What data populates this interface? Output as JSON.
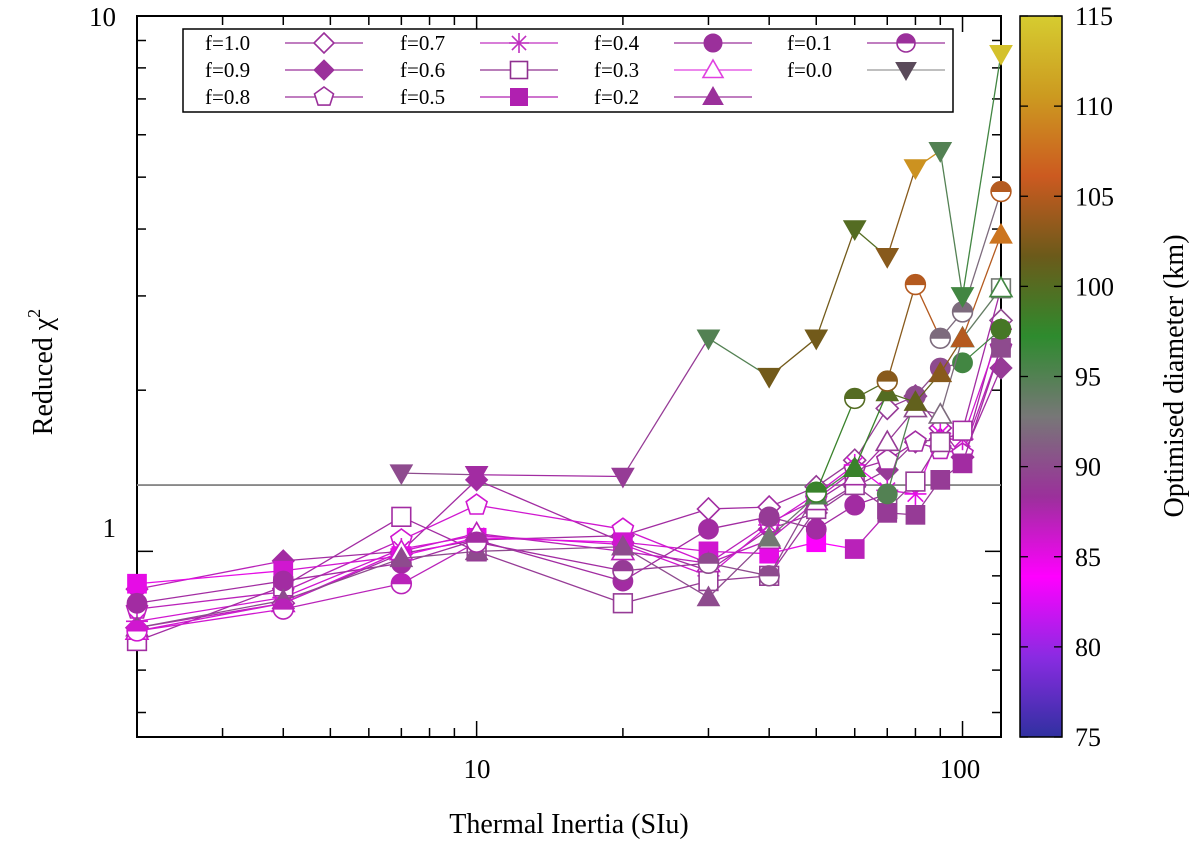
{
  "chart_data": {
    "type": "line",
    "xscale": "log",
    "yscale": "log",
    "xlim": [
      2,
      120
    ],
    "ylim": [
      0.45,
      10
    ],
    "xlabel": "Thermal Inertia (SIu)",
    "ylabel": "Reduced χ",
    "ylabel_superscript": "2",
    "x_tick_labels": [
      "10",
      "100"
    ],
    "y_tick_labels": [
      "1",
      "10"
    ],
    "reference_line": 1.33,
    "colorbar": {
      "label": "Optimised diameter (km)",
      "range": [
        75,
        115
      ],
      "tick_labels": [
        "75",
        "80",
        "85",
        "90",
        "95",
        "100",
        "105",
        "110",
        "115"
      ],
      "colormap": [
        "#3030a0",
        "#8a2be2",
        "#ff00ff",
        "#9b309b",
        "#777777",
        "#2e8b2e",
        "#6b5a1a",
        "#cc5a20",
        "#cc9a20",
        "#d6cc30"
      ]
    },
    "x": [
      2,
      4,
      7,
      10,
      20,
      30,
      40,
      50,
      60,
      70,
      80,
      90,
      100,
      120
    ],
    "series": [
      {
        "name": "f=1.0",
        "marker": "diamond-open",
        "values": [
          0.72,
          0.8,
          0.99,
          1.05,
          1.07,
          1.2,
          1.21,
          1.32,
          1.48,
          1.85,
          1.95,
          1.7,
          1.5,
          2.7
        ],
        "diameters": [
          87,
          88,
          88,
          88,
          88,
          88,
          88,
          89,
          89,
          89,
          89,
          88,
          88,
          90
        ]
      },
      {
        "name": "f=0.9",
        "marker": "diamond-filled",
        "values": [
          0.85,
          0.96,
          1.0,
          1.36,
          1.04,
          0.92,
          1.1,
          1.18,
          1.32,
          1.42,
          1.6,
          1.62,
          1.5,
          2.2
        ],
        "diameters": [
          87,
          88,
          88,
          88,
          88,
          88,
          88,
          89,
          89,
          89,
          89,
          88,
          88,
          89
        ]
      },
      {
        "name": "f=0.8",
        "marker": "pentagon-open",
        "values": [
          0.78,
          0.84,
          1.05,
          1.22,
          1.1,
          0.95,
          1.13,
          1.25,
          1.42,
          1.48,
          1.6,
          1.55,
          1.52,
          2.4
        ],
        "diameters": [
          87,
          87,
          86,
          86,
          86,
          87,
          87,
          87,
          88,
          88,
          88,
          87,
          87,
          88
        ]
      },
      {
        "name": "f=0.7",
        "marker": "asterisk",
        "values": [
          0.74,
          0.82,
          1.01,
          1.07,
          1.03,
          0.9,
          1.12,
          1.28,
          1.45,
          1.3,
          1.28,
          1.66,
          1.62,
          2.6
        ],
        "diameters": [
          86,
          86,
          86,
          86,
          86,
          86,
          86,
          86,
          85,
          86,
          85,
          85,
          86,
          86
        ]
      },
      {
        "name": "f=0.6",
        "marker": "square-open",
        "values": [
          0.68,
          0.86,
          1.16,
          1.0,
          0.8,
          0.88,
          0.9,
          1.2,
          1.33,
          1.2,
          1.35,
          1.6,
          1.68,
          3.1
        ],
        "diameters": [
          88,
          88,
          88,
          89,
          89,
          89,
          89,
          89,
          89,
          90,
          89,
          89,
          88,
          93
        ]
      },
      {
        "name": "f=0.5",
        "marker": "square-filled",
        "values": [
          0.87,
          0.92,
          0.98,
          1.06,
          1.04,
          1.0,
          0.99,
          1.04,
          1.01,
          1.18,
          1.17,
          1.36,
          1.46,
          2.4
        ],
        "diameters": [
          85,
          86,
          85,
          85,
          86,
          86,
          85,
          84,
          87,
          89,
          89,
          89,
          88,
          90
        ]
      },
      {
        "name": "f=0.4",
        "marker": "circle-filled",
        "values": [
          0.8,
          0.88,
          0.95,
          1.05,
          0.88,
          1.1,
          1.16,
          1.1,
          1.22,
          1.28,
          1.95,
          2.2,
          2.25,
          2.6
        ],
        "diameters": [
          88,
          88,
          88,
          88,
          88,
          88,
          89,
          88,
          88,
          95,
          90,
          90,
          96,
          99
        ]
      },
      {
        "name": "f=0.3",
        "marker": "triangle-up-open",
        "values": [
          0.71,
          0.8,
          1.0,
          1.08,
          1.0,
          0.95,
          1.05,
          1.24,
          1.38,
          1.6,
          1.85,
          1.8,
          2.5,
          3.1
        ],
        "diameters": [
          86,
          86,
          86,
          87,
          87,
          87,
          87,
          88,
          88,
          89,
          90,
          92,
          94,
          96
        ]
      },
      {
        "name": "f=0.2",
        "marker": "triangle-up-filled",
        "values": [
          0.72,
          0.81,
          0.97,
          1.0,
          1.02,
          0.82,
          1.06,
          1.27,
          1.43,
          1.98,
          1.9,
          2.15,
          2.5,
          3.9
        ],
        "diameters": [
          90,
          90,
          90,
          90,
          90,
          90,
          93,
          95,
          98,
          100,
          101,
          103,
          105,
          108
        ]
      },
      {
        "name": "f=0.1",
        "marker": "circle-half",
        "values": [
          0.71,
          0.78,
          0.87,
          1.04,
          0.92,
          0.95,
          0.9,
          1.29,
          1.93,
          2.08,
          3.15,
          2.5,
          2.8,
          4.7
        ],
        "diameters": [
          86,
          87,
          87,
          88,
          89,
          90,
          90,
          98,
          100,
          103,
          105,
          92,
          92,
          105
        ]
      },
      {
        "name": "f=0.0",
        "marker": "triangle-down-filled",
        "values": [
          null,
          null,
          1.4,
          1.39,
          1.38,
          2.5,
          2.12,
          2.5,
          4.0,
          3.55,
          5.2,
          5.6,
          3.0,
          8.5
        ],
        "diameters": [
          null,
          null,
          90,
          88,
          89,
          95,
          102,
          102,
          100,
          103,
          110,
          95,
          96,
          114
        ]
      }
    ]
  }
}
